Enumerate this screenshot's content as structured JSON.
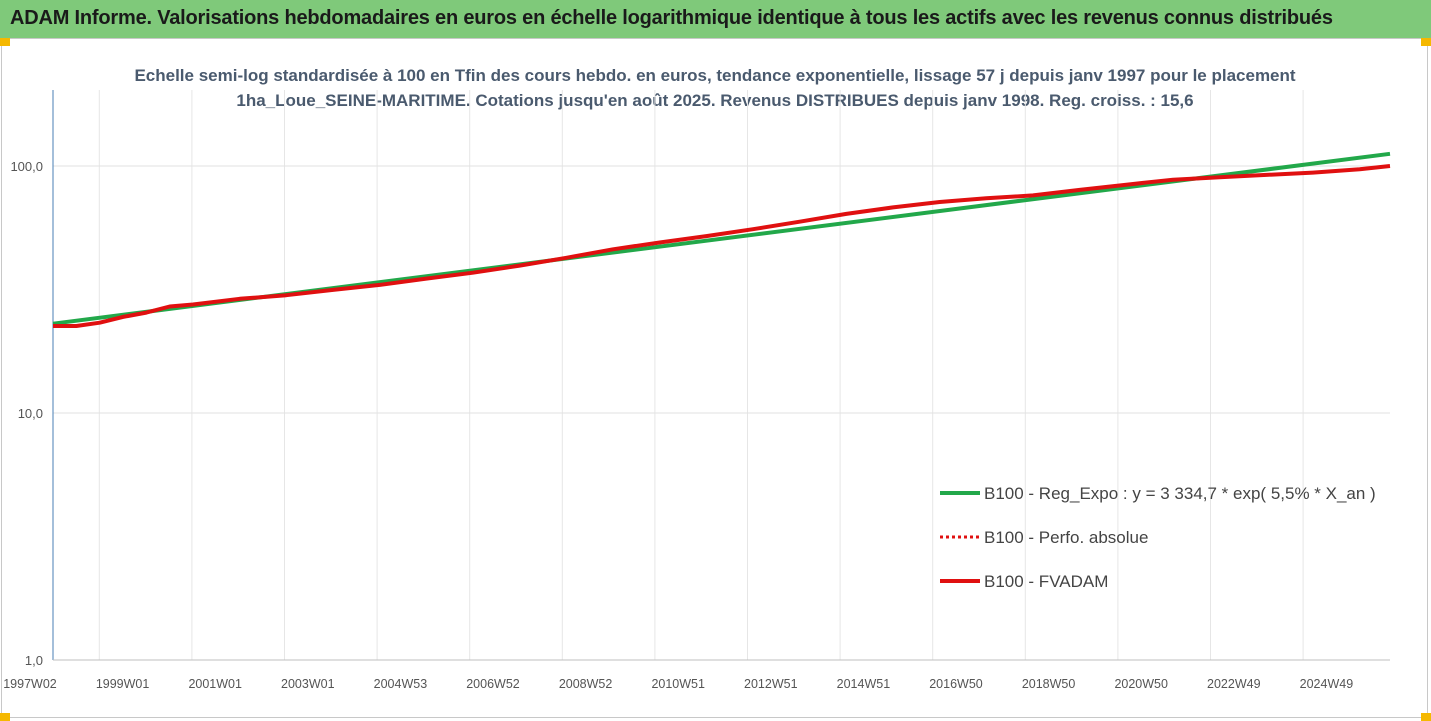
{
  "banner": {
    "title": "ADAM Informe. Valorisations hebdomadaires en euros en échelle logarithmique identique à tous les actifs avec les revenus connus distribués"
  },
  "chart_data": {
    "type": "line",
    "title": "Echelle semi-log standardisée à 100 en Tfin des cours hebdo. en euros, tendance exponentielle, lissage 57 j depuis janv 1997 pour le placement 1ha_Loue_SEINE-MARITIME.  Cotations jusqu'en août 2025. Revenus DISTRIBUES depuis janv 1998. Reg.  croiss. : 15,6",
    "yscale": "log",
    "ylim": [
      1,
      200
    ],
    "y_ticks": [
      "1,0",
      "10,0",
      "100,0"
    ],
    "x_ticks": [
      "1997W02",
      "1999W01",
      "2001W01",
      "2003W01",
      "2004W53",
      "2006W52",
      "2008W52",
      "2010W51",
      "2012W51",
      "2014W51",
      "2016W50",
      "2018W50",
      "2020W50",
      "2022W49",
      "2024W49"
    ],
    "grid": true,
    "legend_position": "lower-right",
    "series": [
      {
        "name": "B100 - Reg_Expo : y = 3 334,7 * exp( 5,5% *  X_an )",
        "color": "#22a84a",
        "style": "solid",
        "x": [
          1997.0,
          2025.65
        ],
        "y": [
          23.0,
          112.0
        ]
      },
      {
        "name": "B100 - Perfo. absolue",
        "color": "#e01010",
        "style": "dotted",
        "x": [],
        "y": []
      },
      {
        "name": "B100 - FVADAM",
        "color": "#e01010",
        "style": "solid",
        "x": [
          1997.0,
          1997.5,
          1998.0,
          1998.5,
          1999.0,
          1999.5,
          2000.0,
          2001.0,
          2002.0,
          2003.0,
          2004.0,
          2005.0,
          2006.0,
          2007.0,
          2008.0,
          2009.0,
          2010.0,
          2011.0,
          2012.0,
          2013.0,
          2014.0,
          2015.0,
          2016.0,
          2017.0,
          2018.0,
          2019.0,
          2020.0,
          2021.0,
          2022.0,
          2023.0,
          2024.0,
          2025.0,
          2025.65
        ],
        "y": [
          22.5,
          22.5,
          23.2,
          24.5,
          25.5,
          27.0,
          27.5,
          29.0,
          30.0,
          31.5,
          33.0,
          35.0,
          37.0,
          39.5,
          42.5,
          46.0,
          49.0,
          52.0,
          55.5,
          59.5,
          64.0,
          68.0,
          71.5,
          74.0,
          76.0,
          80.0,
          84.0,
          88.0,
          90.0,
          92.0,
          94.0,
          97.0,
          100.0
        ]
      }
    ]
  }
}
